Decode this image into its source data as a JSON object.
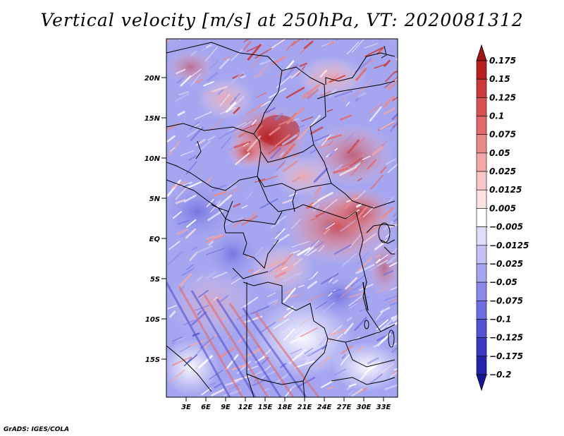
{
  "title": "Vertical velocity [m/s] at 250hPa, VT: 2020081312",
  "credit": "GrADS: IGES/COLA",
  "map": {
    "lat_ticks": [
      "20N",
      "15N",
      "10N",
      "5N",
      "EQ",
      "5S",
      "10S",
      "15S"
    ],
    "lon_ticks": [
      "3E",
      "6E",
      "9E",
      "12E",
      "15E",
      "18E",
      "21E",
      "24E",
      "27E",
      "30E",
      "33E"
    ],
    "lon_range": [
      0,
      35
    ],
    "lat_range": [
      -20,
      25
    ],
    "background_color": "#a6a6f0"
  },
  "colorbar": {
    "labels": [
      "0.175",
      "0.15",
      "0.125",
      "0.1",
      "0.075",
      "0.05",
      "0.025",
      "0.0125",
      "0.005",
      "-0.005",
      "-0.0125",
      "-0.025",
      "-0.05",
      "-0.075",
      "-0.1",
      "-0.125",
      "-0.175",
      "-0.2"
    ],
    "colors": [
      "#a01616",
      "#b82020",
      "#cc3a3a",
      "#d85252",
      "#e26a6a",
      "#ea8a8a",
      "#f2a8a8",
      "#f8c6c6",
      "#fde2e2",
      "#ffffff",
      "#dcdcfb",
      "#c2c2f6",
      "#a6a6f0",
      "#8a8aea",
      "#6e6ee0",
      "#5252d2",
      "#3a3ac0",
      "#2424aa",
      "#16169a"
    ]
  }
}
